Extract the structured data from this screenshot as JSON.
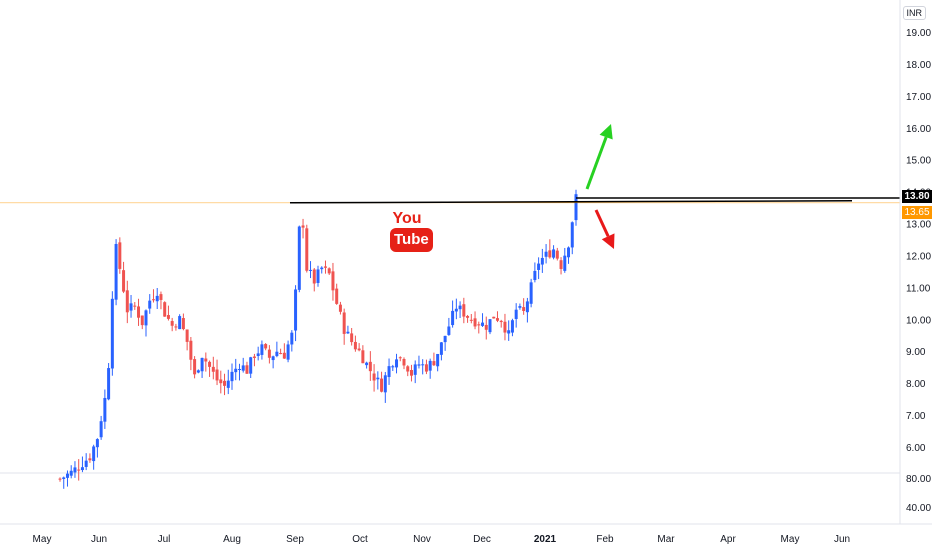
{
  "currency": "INR",
  "last_price_label": "13.80",
  "resistance_label": "13.65",
  "watermark": {
    "top": "You",
    "bottom": "Tube"
  },
  "colors": {
    "up": "#2962ff",
    "down": "#ef5350",
    "accent_orange": "#ff9800",
    "arrow_up": "#27d122",
    "arrow_down": "#e8191a",
    "line": "#000000"
  },
  "chart_data": {
    "type": "candlestick",
    "title": "",
    "y_ticks": [
      "19.00",
      "18.00",
      "17.00",
      "16.00",
      "15.00",
      "14.00",
      "13.00",
      "12.00",
      "11.00",
      "10.00",
      "9.00",
      "8.00",
      "7.00",
      "6.00"
    ],
    "volume_ticks": [
      "80.00",
      "40.00"
    ],
    "x_ticks": [
      "May",
      "Jun",
      "Jul",
      "Aug",
      "Sep",
      "Oct",
      "Nov",
      "Dec",
      "2021",
      "Feb",
      "Mar",
      "Apr",
      "May",
      "Jun"
    ],
    "ylim": [
      5.2,
      19.6
    ],
    "horizontal_lines": [
      {
        "label": "resistance",
        "y": 13.65
      },
      {
        "label": "last",
        "y": 13.8
      }
    ],
    "annotations": [
      {
        "type": "arrow",
        "direction": "up",
        "color": "#27d122"
      },
      {
        "type": "arrow",
        "direction": "down",
        "color": "#e8191a"
      }
    ],
    "close_path": [
      [
        0,
        5.0
      ],
      [
        3,
        5.2
      ],
      [
        6,
        5.5
      ],
      [
        8,
        5.7
      ],
      [
        10,
        6.3
      ],
      [
        12,
        7.5
      ],
      [
        13,
        8.6
      ],
      [
        14,
        10.8
      ],
      [
        15,
        12.2
      ],
      [
        16,
        11.6
      ],
      [
        18,
        10.3
      ],
      [
        20,
        10.4
      ],
      [
        22,
        9.9
      ],
      [
        24,
        10.6
      ],
      [
        26,
        10.9
      ],
      [
        28,
        10.2
      ],
      [
        30,
        9.8
      ],
      [
        32,
        10.0
      ],
      [
        34,
        9.3
      ],
      [
        36,
        8.2
      ],
      [
        38,
        8.9
      ],
      [
        40,
        8.5
      ],
      [
        42,
        8.1
      ],
      [
        44,
        7.9
      ],
      [
        46,
        8.3
      ],
      [
        48,
        8.6
      ],
      [
        50,
        8.4
      ],
      [
        52,
        8.9
      ],
      [
        54,
        9.1
      ],
      [
        56,
        8.8
      ],
      [
        58,
        9.0
      ],
      [
        60,
        8.9
      ],
      [
        62,
        9.5
      ],
      [
        63,
        10.8
      ],
      [
        64,
        12.8
      ],
      [
        65,
        13.0
      ],
      [
        66,
        11.6
      ],
      [
        68,
        11.2
      ],
      [
        70,
        11.6
      ],
      [
        72,
        11.4
      ],
      [
        74,
        10.5
      ],
      [
        76,
        9.7
      ],
      [
        78,
        9.3
      ],
      [
        80,
        9.0
      ],
      [
        82,
        8.6
      ],
      [
        84,
        8.2
      ],
      [
        86,
        7.9
      ],
      [
        88,
        8.5
      ],
      [
        90,
        8.9
      ],
      [
        92,
        8.7
      ],
      [
        94,
        8.3
      ],
      [
        96,
        8.6
      ],
      [
        98,
        8.5
      ],
      [
        100,
        8.7
      ],
      [
        102,
        9.2
      ],
      [
        104,
        9.8
      ],
      [
        106,
        10.4
      ],
      [
        108,
        10.2
      ],
      [
        110,
        10.0
      ],
      [
        112,
        9.9
      ],
      [
        114,
        9.8
      ],
      [
        116,
        10.1
      ],
      [
        118,
        10.0
      ],
      [
        120,
        9.5
      ],
      [
        122,
        10.3
      ],
      [
        124,
        10.2
      ],
      [
        126,
        11.0
      ],
      [
        128,
        11.8
      ],
      [
        130,
        12.0
      ],
      [
        132,
        12.2
      ],
      [
        134,
        11.7
      ],
      [
        136,
        12.4
      ],
      [
        138,
        13.8
      ]
    ]
  }
}
